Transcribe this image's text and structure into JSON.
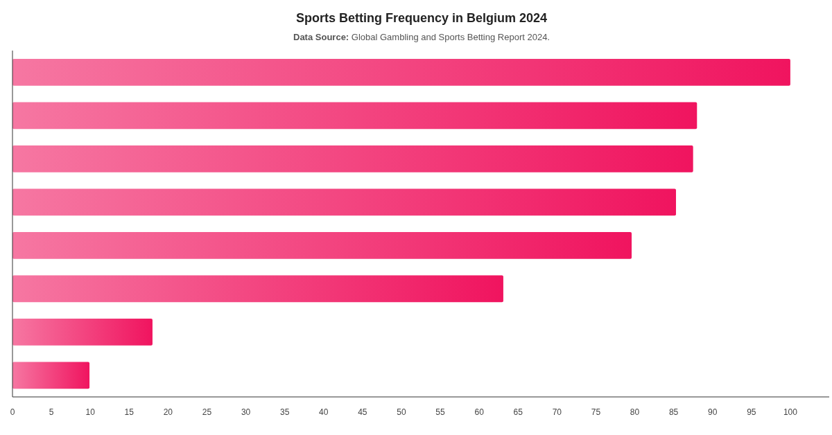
{
  "chart_data": {
    "type": "bar",
    "orientation": "horizontal",
    "title": "Sports Betting Frequency in Belgium 2024",
    "subtitle": "Data Source: Global Gambling and Sports Betting Report 2024.",
    "categories": [
      null,
      null,
      null,
      null,
      null,
      null,
      null,
      null
    ],
    "values": [
      100,
      88,
      87.5,
      85.3,
      79.6,
      63.1,
      18,
      9.9
    ],
    "color": "#f0145f",
    "xlim": [
      0,
      105
    ],
    "xticks": [
      0,
      5,
      10,
      15,
      20,
      25,
      30,
      35,
      40,
      45,
      50,
      55,
      60,
      65,
      70,
      75,
      80,
      85,
      90,
      95,
      100
    ],
    "grid": false
  }
}
